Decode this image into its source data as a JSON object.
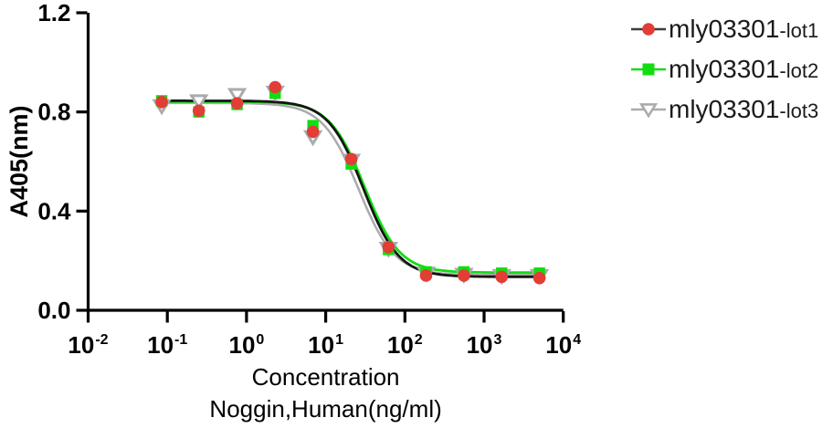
{
  "background": "#ffffff",
  "axis_color": "#000000",
  "chart_data": {
    "type": "scatter",
    "subtype": "dose-response-inhibition-curve-4PL",
    "title": "",
    "xlabel_line1": "Concentration",
    "xlabel_line2": "Noggin,Human(ng/ml)",
    "ylabel": "A405(nm)",
    "grid": false,
    "legend_position": "top-right",
    "x_axis": {
      "scale": "log10",
      "tick_base": "10",
      "tick_exponents": [
        -2,
        -1,
        0,
        1,
        2,
        3,
        4
      ]
    },
    "y_axis": {
      "min": 0,
      "max": 1.2,
      "ticks": [
        0,
        0.4,
        0.8,
        1.2
      ],
      "tick_labels": [
        "0.0",
        "0.4",
        "0.8",
        "1.2"
      ]
    },
    "x": [
      0.085,
      0.25,
      0.76,
      2.3,
      6.9,
      21,
      62,
      185,
      556,
      1667,
      5000
    ],
    "curve_x_range": [
      0.082,
      5000
    ],
    "series": [
      {
        "name": "mly03301-lot1",
        "marker": "circle",
        "marker_color": "#e23d36",
        "marker_fill": "#e23d36",
        "line_color": "#151515",
        "line_width": 2.8,
        "values": [
          0.84,
          0.805,
          0.835,
          0.9,
          0.72,
          0.61,
          0.255,
          0.14,
          0.14,
          0.135,
          0.13
        ],
        "fit": {
          "top": 0.845,
          "bottom": 0.135,
          "ic50": 30,
          "hill": 1.95
        }
      },
      {
        "name": "mly03301-lot2",
        "marker": "square",
        "marker_color": "#12dd12",
        "marker_fill": "#12dd12",
        "line_color": "#12dd12",
        "line_width": 2.8,
        "values": [
          0.845,
          0.8,
          0.83,
          0.875,
          0.745,
          0.59,
          0.245,
          0.155,
          0.155,
          0.15,
          0.15
        ],
        "fit": {
          "top": 0.842,
          "bottom": 0.152,
          "ic50": 31,
          "hill": 1.95
        }
      },
      {
        "name": "mly03301-lot3",
        "marker": "triangle-down",
        "marker_color": "#a9abae",
        "marker_fill": "#ffffff",
        "line_color": "#ababab",
        "line_width": 2.5,
        "values": [
          0.825,
          0.845,
          0.87,
          0.88,
          0.7,
          0.605,
          0.25,
          0.15,
          0.145,
          0.14,
          0.14
        ],
        "fit": {
          "top": 0.836,
          "bottom": 0.142,
          "ic50": 26,
          "hill": 1.9
        }
      }
    ]
  },
  "legend": {
    "items": [
      {
        "prefix": "mly03301",
        "suffix": "-lot1",
        "marker": "circle",
        "marker_color": "#e23d36",
        "marker_fill": "#e23d36",
        "line_color": "#3c3c3c"
      },
      {
        "prefix": "mly03301",
        "suffix": "-lot2",
        "marker": "square",
        "marker_color": "#12dd12",
        "marker_fill": "#12dd12",
        "line_color": "#12dd12"
      },
      {
        "prefix": "mly03301",
        "suffix": "-lot3",
        "marker": "triangle-down",
        "marker_color": "#a9abae",
        "marker_fill": "#ffffff",
        "line_color": "#a9abae"
      }
    ]
  }
}
